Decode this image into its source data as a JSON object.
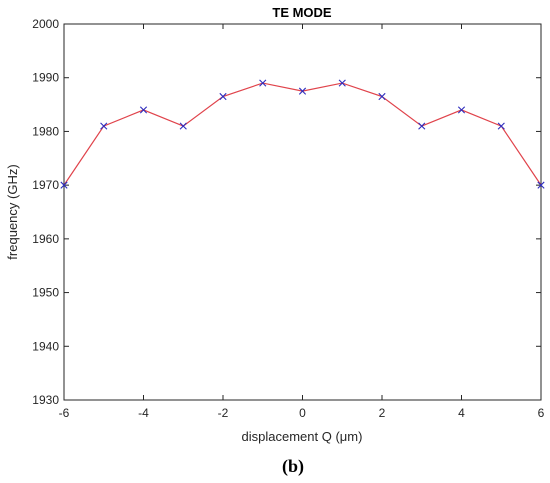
{
  "chart_data": {
    "type": "line",
    "title": "TE MODE",
    "xlabel": "displacement Q (μm)",
    "ylabel": "frequency (GHz)",
    "xlim": [
      -6,
      6
    ],
    "ylim": [
      1930,
      2000
    ],
    "xticks": [
      -6,
      -4,
      -2,
      0,
      2,
      4,
      6
    ],
    "yticks": [
      1930,
      1940,
      1950,
      1960,
      1970,
      1980,
      1990,
      2000
    ],
    "grid": false,
    "series": [
      {
        "line_color": "#e0434b",
        "marker_color": "#2d2dbf",
        "marker": "x",
        "x": [
          -6,
          -5,
          -4,
          -3,
          -2,
          -1,
          0,
          1,
          2,
          3,
          4,
          5,
          6
        ],
        "y": [
          1970,
          1981,
          1984,
          1981,
          1986.5,
          1989,
          1987.5,
          1989,
          1986.5,
          1981,
          1984,
          1981,
          1970
        ]
      }
    ]
  },
  "caption": "(b)"
}
